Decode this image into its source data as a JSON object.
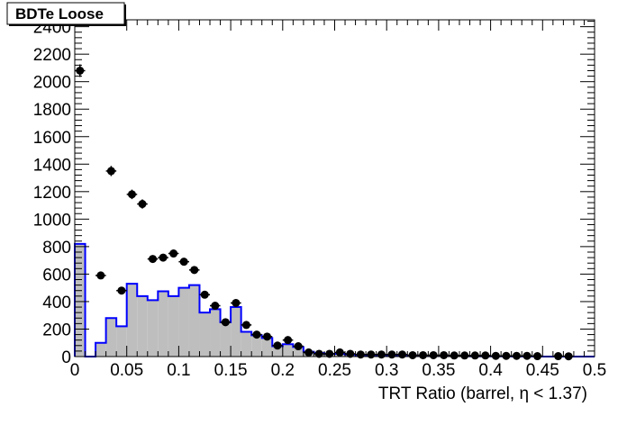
{
  "chart_data": {
    "type": "bar",
    "title": "BDTe Loose",
    "xlabel": "TRT Ratio (barrel,  η < 1.37)",
    "ylabel": "",
    "xlim": [
      0,
      0.5
    ],
    "ylim": [
      0,
      2450
    ],
    "grid": false,
    "x_ticks": [
      "0",
      "0.05",
      "0.1",
      "0.15",
      "0.2",
      "0.25",
      "0.3",
      "0.35",
      "0.4",
      "0.45",
      "0.5"
    ],
    "y_ticks": [
      "0",
      "200",
      "400",
      "600",
      "800",
      "1000",
      "1200",
      "1400",
      "1600",
      "1800",
      "2000",
      "2200",
      "2400"
    ],
    "series": [
      {
        "kind": "histogram",
        "bin_width": 0.01,
        "x": [
          0.005,
          0.015,
          0.025,
          0.035,
          0.045,
          0.055,
          0.065,
          0.075,
          0.085,
          0.095,
          0.105,
          0.115,
          0.125,
          0.135,
          0.145,
          0.155,
          0.165,
          0.175,
          0.185,
          0.195,
          0.205,
          0.215,
          0.225,
          0.235,
          0.245,
          0.255,
          0.265,
          0.275,
          0.285,
          0.295,
          0.305,
          0.315,
          0.325,
          0.335,
          0.345,
          0.355,
          0.365,
          0.375,
          0.385,
          0.395,
          0.405,
          0.415,
          0.425,
          0.435,
          0.445,
          0.455,
          0.465,
          0.475,
          0.485,
          0.495
        ],
        "values": [
          820,
          0,
          100,
          280,
          220,
          530,
          440,
          410,
          475,
          440,
          500,
          520,
          320,
          345,
          250,
          360,
          180,
          155,
          135,
          75,
          90,
          70,
          35,
          25,
          20,
          20,
          15,
          10,
          10,
          10,
          10,
          8,
          8,
          5,
          5,
          5,
          3,
          3,
          2,
          2,
          2,
          2,
          1,
          1,
          1,
          0,
          0,
          0,
          0,
          0
        ]
      },
      {
        "kind": "points",
        "x": [
          0.005,
          0.025,
          0.035,
          0.045,
          0.055,
          0.065,
          0.075,
          0.085,
          0.095,
          0.105,
          0.115,
          0.125,
          0.135,
          0.145,
          0.155,
          0.165,
          0.175,
          0.185,
          0.195,
          0.205,
          0.215,
          0.225,
          0.235,
          0.245,
          0.255,
          0.265,
          0.275,
          0.285,
          0.295,
          0.305,
          0.315,
          0.325,
          0.335,
          0.345,
          0.355,
          0.365,
          0.375,
          0.385,
          0.395,
          0.405,
          0.415,
          0.425,
          0.435,
          0.445,
          0.465,
          0.475
        ],
        "values": [
          2080,
          590,
          1350,
          480,
          1180,
          1110,
          710,
          720,
          750,
          690,
          630,
          450,
          370,
          250,
          390,
          230,
          160,
          145,
          80,
          120,
          75,
          30,
          20,
          20,
          30,
          20,
          15,
          15,
          15,
          15,
          15,
          10,
          10,
          10,
          10,
          8,
          8,
          8,
          8,
          5,
          5,
          5,
          5,
          3,
          3,
          2
        ]
      }
    ]
  }
}
